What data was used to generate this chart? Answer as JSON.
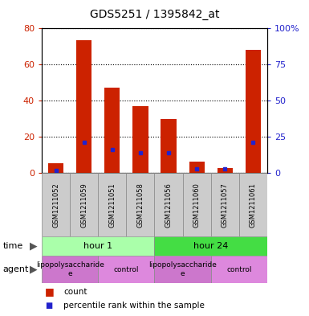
{
  "title": "GDS5251 / 1395842_at",
  "samples": [
    "GSM1211052",
    "GSM1211059",
    "GSM1211051",
    "GSM1211058",
    "GSM1211056",
    "GSM1211060",
    "GSM1211057",
    "GSM1211061"
  ],
  "counts": [
    5.5,
    73,
    47,
    37,
    30,
    6.5,
    3,
    68
  ],
  "percentiles": [
    2,
    21,
    16,
    14,
    14,
    3,
    3,
    21
  ],
  "ylim_left": [
    0,
    80
  ],
  "ylim_right": [
    0,
    100
  ],
  "yticks_left": [
    0,
    20,
    40,
    60,
    80
  ],
  "ytick_labels_right": [
    "0",
    "25",
    "50",
    "75",
    "100%"
  ],
  "yticks_right": [
    0,
    25,
    50,
    75,
    100
  ],
  "bar_color": "#cc2200",
  "percentile_color": "#2222cc",
  "left_label_color": "#cc2200",
  "right_label_color": "#2222cc",
  "time_groups": [
    {
      "label": "hour 1",
      "start": 0,
      "end": 4,
      "color": "#aaffaa"
    },
    {
      "label": "hour 24",
      "start": 4,
      "end": 8,
      "color": "#44dd44"
    }
  ],
  "agent_groups": [
    {
      "label": "lipopolysaccharide\ne",
      "start": 0,
      "end": 2,
      "color": "#cc77cc"
    },
    {
      "label": "control",
      "start": 2,
      "end": 4,
      "color": "#dd88dd"
    },
    {
      "label": "lipopolysaccharide\ne",
      "start": 4,
      "end": 6,
      "color": "#cc77cc"
    },
    {
      "label": "control",
      "start": 6,
      "end": 8,
      "color": "#dd88dd"
    }
  ],
  "legend_count_color": "#cc2200",
  "legend_percentile_color": "#2222cc"
}
